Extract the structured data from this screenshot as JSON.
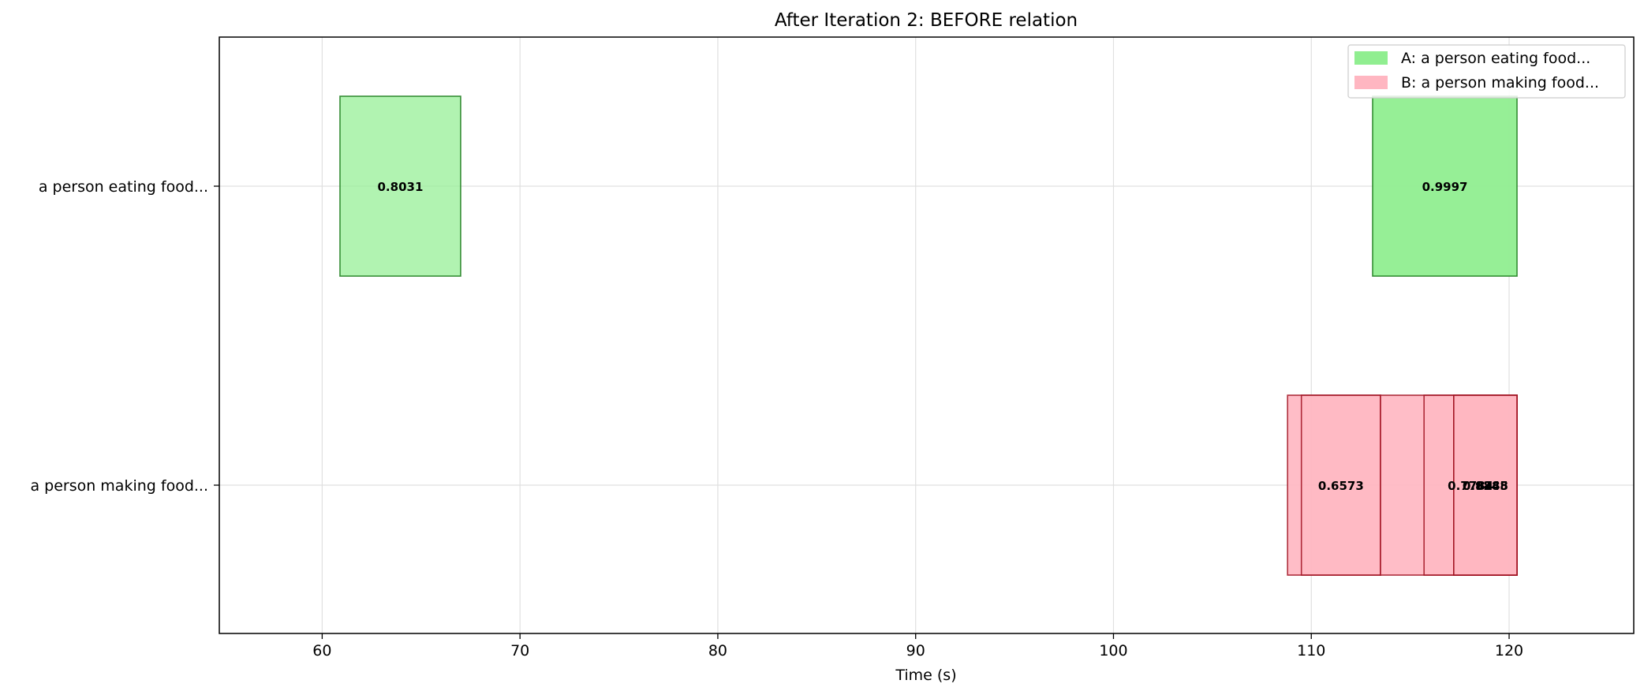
{
  "chart_data": {
    "type": "bar",
    "orientation": "horizontal",
    "title": "After Iteration 2: BEFORE relation",
    "xlabel": "Time (s)",
    "ylabel": "",
    "xlim": [
      54.8,
      126.3
    ],
    "xticks": [
      60,
      70,
      80,
      90,
      100,
      110,
      120
    ],
    "grid": true,
    "legend_position": "top-right",
    "categories": [
      "a person eating food...",
      "a person making food..."
    ],
    "series": [
      {
        "name": "A: a person eating food...",
        "row": "a person eating food...",
        "color": "#90ee90",
        "edge_color": "#1a7a1a",
        "segments": [
          {
            "start": 60.9,
            "end": 67.0,
            "label": "0.8031",
            "opacity": 0.7
          },
          {
            "start": 113.1,
            "end": 120.4,
            "label": "0.9997",
            "opacity": 0.95
          }
        ]
      },
      {
        "name": "B: a person making food...",
        "row": "a person making food...",
        "color": "#ffb6c1",
        "edge_color": "#a01020",
        "segments": [
          {
            "start": 108.8,
            "end": 113.5,
            "label": "",
            "opacity": 0.9
          },
          {
            "start": 109.5,
            "end": 113.5,
            "label": "0.6573",
            "opacity": 0.4
          },
          {
            "start": 113.5,
            "end": 120.4,
            "label": "",
            "opacity": 0.9
          },
          {
            "start": 115.7,
            "end": 120.4,
            "label": "0.7784",
            "opacity": 0.4
          },
          {
            "start": 117.2,
            "end": 120.4,
            "label": "0.9288",
            "opacity": 0.4
          },
          {
            "start": 117.2,
            "end": 120.4,
            "label": "0.8845",
            "opacity": 0.4
          }
        ]
      }
    ]
  }
}
